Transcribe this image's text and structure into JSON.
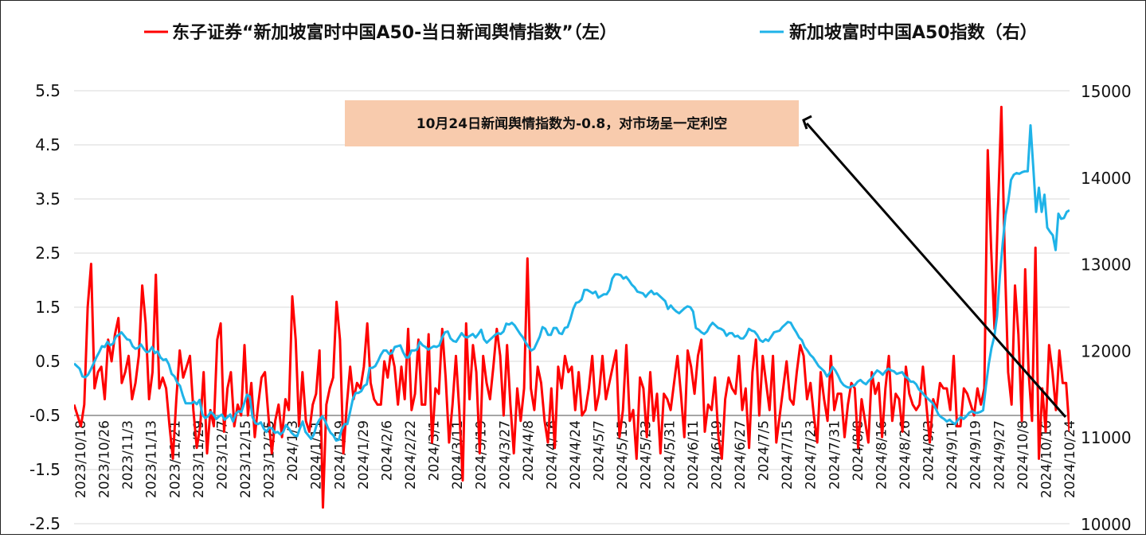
{
  "chart_data": {
    "type": "line",
    "legend_position": "top",
    "grid": true,
    "series": [
      {
        "name": "东子证券“新加坡富时中国A50-当日新闻舆情指数”（左）",
        "axis": "left",
        "color": "#ff0000",
        "values": [
          -0.3,
          -0.5,
          -0.7,
          -0.3,
          1.5,
          2.3,
          0.0,
          0.3,
          0.4,
          -0.2,
          0.9,
          0.5,
          1.0,
          1.3,
          0.1,
          0.3,
          0.6,
          -0.2,
          0.1,
          0.6,
          1.9,
          1.2,
          -0.2,
          0.3,
          2.1,
          0.0,
          0.2,
          0.0,
          -0.7,
          -1.3,
          -0.2,
          0.7,
          0.2,
          0.4,
          0.6,
          -0.4,
          -1.1,
          -0.7,
          0.3,
          -1.2,
          -0.4,
          -0.7,
          0.9,
          1.2,
          -0.8,
          0.0,
          0.3,
          -0.7,
          -0.3,
          -0.5,
          0.8,
          -0.5,
          0.1,
          -0.9,
          -0.3,
          0.2,
          0.3,
          -0.5,
          -1.2,
          -0.6,
          -0.3,
          -0.9,
          -0.2,
          -0.4,
          1.7,
          0.9,
          -0.7,
          0.3,
          -0.6,
          -0.8,
          -0.3,
          -0.1,
          0.7,
          -2.2,
          -0.3,
          0.0,
          0.2,
          1.6,
          0.9,
          -1.2,
          -0.3,
          0.4,
          -0.2,
          0.1,
          0.0,
          0.4,
          1.2,
          0.1,
          -0.2,
          -0.3,
          -0.3,
          0.5,
          0.2,
          0.7,
          0.4,
          -0.3,
          0.4,
          -0.2,
          1.1,
          -0.4,
          -0.1,
          0.9,
          -0.3,
          -0.3,
          1.0,
          -1.0,
          0.0,
          -0.1,
          1.1,
          0.2,
          -1.0,
          -0.3,
          0.6,
          -0.4,
          -1.7,
          1.2,
          -0.2,
          0.8,
          0.3,
          -1.2,
          0.6,
          0.1,
          -0.2,
          0.4,
          1.1,
          0.6,
          -0.5,
          0.8,
          -0.3,
          -1.2,
          0.0,
          -0.6,
          0.0,
          2.4,
          0.0,
          -0.4,
          0.4,
          0.1,
          -0.6,
          -1.0,
          0.0,
          -1.1,
          0.4,
          0.0,
          0.6,
          0.3,
          0.4,
          -0.4,
          0.3,
          -0.5,
          -0.4,
          0.0,
          0.6,
          -0.4,
          -0.1,
          0.6,
          -0.2,
          0.1,
          0.4,
          0.7,
          -0.9,
          -0.4,
          0.8,
          -0.6,
          -0.4,
          -1.3,
          0.2,
          0.0,
          -0.9,
          0.3,
          -0.6,
          -0.1,
          -1.2,
          -0.1,
          -0.2,
          -0.4,
          0.1,
          0.6,
          -0.1,
          -0.9,
          0.7,
          0.4,
          -0.1,
          0.6,
          0.9,
          -0.8,
          -0.3,
          -0.4,
          0.2,
          -0.9,
          -1.3,
          -0.2,
          0.2,
          0.0,
          -0.1,
          0.6,
          -0.4,
          0.0,
          -1.1,
          0.3,
          0.9,
          -0.5,
          0.6,
          0.1,
          -0.4,
          0.6,
          -1.0,
          -0.5,
          0.0,
          0.5,
          -0.2,
          -0.3,
          0.3,
          0.8,
          0.6,
          -0.2,
          0.1,
          -0.5,
          -1.0,
          0.3,
          -0.2,
          -0.6,
          0.6,
          -0.4,
          -0.1,
          -0.1,
          -0.9,
          -0.3,
          0.1,
          0.0,
          -1.1,
          -0.2,
          -0.6,
          -1.0,
          0.3,
          -0.1,
          0.1,
          -0.9,
          0.0,
          0.6,
          -0.6,
          -0.1,
          -0.2,
          -0.8,
          0.4,
          -0.1,
          -0.3,
          -0.4,
          -0.3,
          0.4,
          -0.3,
          -1.0,
          -0.2,
          -0.4,
          0.1,
          0.0,
          0.0,
          -0.4,
          0.6,
          -0.7,
          -0.7,
          0.0,
          -0.1,
          -0.3,
          -0.5,
          0.0,
          -0.3,
          0.0,
          4.4,
          2.6,
          1.1,
          3.3,
          5.2,
          2.4,
          0.3,
          -0.3,
          1.9,
          1.0,
          -0.6,
          2.2,
          0.3,
          -0.6,
          2.6,
          -1.3,
          0.0,
          -0.8,
          0.8,
          0.3,
          -0.4,
          0.7,
          0.1,
          0.1,
          -0.8
        ]
      },
      {
        "name": "新加坡富时中国A50指数（右）",
        "axis": "right",
        "color": "#1fb3e8",
        "values": [
          11850,
          11820,
          11790,
          11700,
          11690,
          11720,
          11780,
          11850,
          11920,
          11980,
          12050,
          12040,
          12100,
          12060,
          12080,
          12160,
          12180,
          12210,
          12170,
          12130,
          12120,
          12050,
          12020,
          12030,
          12070,
          12020,
          11980,
          11990,
          12040,
          11970,
          11990,
          11920,
          11890,
          11900,
          11840,
          11730,
          11700,
          11630,
          11590,
          11480,
          11390,
          11390,
          11390,
          11410,
          11380,
          11430,
          11260,
          11220,
          11240,
          11290,
          11260,
          11210,
          11240,
          11260,
          11200,
          11230,
          11260,
          11180,
          11270,
          11300,
          11290,
          11390,
          11490,
          11470,
          11230,
          11160,
          11150,
          11170,
          11100,
          11060,
          11110,
          11100,
          11050,
          11060,
          11030,
          11060,
          11140,
          11100,
          11050,
          11020,
          11010,
          11100,
          11180,
          11060,
          11020,
          10980,
          11030,
          11140,
          11200,
          11240,
          11190,
          11110,
          11050,
          11020,
          10960,
          10970,
          11090,
          11150,
          11150,
          11290,
          11440,
          11510,
          11510,
          11530,
          11590,
          11610,
          11800,
          11800,
          11820,
          11880,
          11950,
          12000,
          12000,
          11960,
          11970,
          12040,
          12050,
          12060,
          11980,
          11920,
          11920,
          12000,
          12000,
          12010,
          12100,
          12060,
          12040,
          12010,
          12030,
          12050,
          12040,
          12060,
          12150,
          12210,
          12220,
          12140,
          12110,
          12100,
          12150,
          12200,
          12160,
          12150,
          12170,
          12190,
          12150,
          12190,
          12240,
          12130,
          12090,
          12120,
          12150,
          12180,
          12200,
          12190,
          12220,
          12310,
          12300,
          12320,
          12290,
          12240,
          12190,
          12150,
          12090,
          12040,
          12000,
          12020,
          12090,
          12160,
          12270,
          12250,
          12180,
          12180,
          12260,
          12260,
          12200,
          12190,
          12260,
          12270,
          12360,
          12480,
          12550,
          12560,
          12590,
          12700,
          12700,
          12680,
          12660,
          12680,
          12610,
          12630,
          12650,
          12650,
          12700,
          12830,
          12880,
          12880,
          12870,
          12830,
          12850,
          12810,
          12760,
          12730,
          12680,
          12670,
          12660,
          12620,
          12660,
          12690,
          12650,
          12660,
          12630,
          12600,
          12570,
          12480,
          12520,
          12480,
          12450,
          12430,
          12460,
          12490,
          12510,
          12500,
          12450,
          12260,
          12240,
          12210,
          12190,
          12220,
          12280,
          12320,
          12290,
          12260,
          12250,
          12230,
          12170,
          12200,
          12200,
          12160,
          12170,
          12140,
          12140,
          12180,
          12250,
          12230,
          12220,
          12180,
          12120,
          12100,
          12130,
          12110,
          12160,
          12210,
          12220,
          12230,
          12270,
          12300,
          12330,
          12320,
          12260,
          12210,
          12150,
          12120,
          12040,
          12000,
          11950,
          11920,
          11870,
          11820,
          11790,
          11760,
          11700,
          11740,
          11810,
          11770,
          11710,
          11640,
          11600,
          11580,
          11570,
          11590,
          11600,
          11640,
          11660,
          11630,
          11610,
          11650,
          11680,
          11730,
          11770,
          11750,
          11720,
          11760,
          11790,
          11770,
          11760,
          11730,
          11740,
          11750,
          11700,
          11680,
          11640,
          11640,
          11610,
          11550,
          11520,
          11480,
          11450,
          11420,
          11390,
          11330,
          11260,
          11230,
          11210,
          11180,
          11200,
          11170,
          11150,
          11200,
          11230,
          11210,
          11240,
          11280,
          11300,
          11280,
          11280,
          11290,
          11310,
          11590,
          11840,
          12030,
          12160,
          12400,
          12860,
          13230,
          13560,
          13720,
          13970,
          14030,
          14050,
          14040,
          14060,
          14070,
          14070,
          14600,
          14110,
          13600,
          13880,
          13600,
          13800,
          13420,
          13370,
          13330,
          13160,
          13580,
          13520,
          13530,
          13600,
          13620
        ]
      }
    ],
    "left_axis": {
      "ylim": [
        -2.5,
        5.5
      ],
      "ticks": [
        "5.5",
        "4.5",
        "3.5",
        "2.5",
        "1.5",
        "0.5",
        "-0.5",
        "-1.5",
        "-2.5"
      ]
    },
    "right_axis": {
      "ylim": [
        10000,
        15000
      ],
      "ticks": [
        "15000",
        "14000",
        "13000",
        "12000",
        "11000",
        "10000"
      ]
    },
    "x_tick_labels": [
      "2023/10/18",
      "2023/10/26",
      "2023/11/3",
      "2023/11/13",
      "2023/11/21",
      "2023/11/29",
      "2023/12/7",
      "2023/12/15",
      "2023/12/25",
      "2024/1/3",
      "2024/1/11",
      "2024/1/19",
      "2024/1/29",
      "2024/2/6",
      "2024/2/22",
      "2024/3/1",
      "2024/3/11",
      "2024/3/19",
      "2024/3/27",
      "2024/4/8",
      "2024/4/16",
      "2024/4/24",
      "2024/5/7",
      "2024/5/15",
      "2024/5/23",
      "2024/5/31",
      "2024/6/11",
      "2024/6/19",
      "2024/6/27",
      "2024/7/5",
      "2024/7/15",
      "2024/7/23",
      "2024/7/31",
      "2024/8/8",
      "2024/8/16",
      "2024/8/26",
      "2024/9/3",
      "2024/9/11",
      "2024/9/19",
      "2024/9/27",
      "2024/10/8",
      "2024/10/16",
      "2024/10/24"
    ],
    "annotation": {
      "text": "10月24日新闻舆情指数为-0.8，对市场呈一定利空",
      "background": "#f8cbad"
    }
  }
}
